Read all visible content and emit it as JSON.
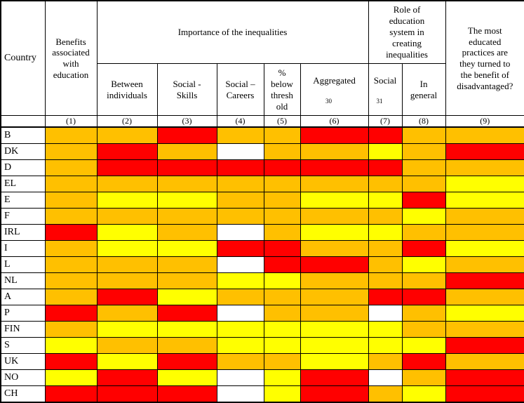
{
  "header": {
    "country": "Country",
    "benefits": "Benefits\nassociated\nwith\neducation",
    "importance_group": "Importance of the inequalities",
    "between_individuals": "Between\nindividuals",
    "social_skills": "Social -\nSkills",
    "social_careers": "Social –\nCareers",
    "pct_below_threshold": "%\nbelow\nthresh\nold",
    "aggregated_label": "Aggregated",
    "aggregated_note": "30",
    "role_group": "Role of\neducation\nsystem in\ncreating\ninequalities",
    "social_label": "Social",
    "social_note": "31",
    "in_general": "In\ngeneral",
    "most_educated": "The most\neducated\npractices are\nthey turned to\nthe benefit of\ndisadvantaged?",
    "column_numbers": [
      "(1)",
      "(2)",
      "(3)",
      "(4)",
      "(5)",
      "(6)",
      "(7)",
      "(8)",
      "(9)"
    ]
  },
  "chart_data": {
    "type": "heatmap",
    "columns": [
      "Benefits associated with education (1)",
      "Between individuals (2)",
      "Social - Skills (3)",
      "Social – Careers (4)",
      "% below threshold (5)",
      "Aggregated 30 (6)",
      "Social 31 (7)",
      "In general (8)",
      "The most educated practices are they turned to the benefit of disadvantaged? (9)"
    ],
    "column_groups": [
      {
        "label": "Importance of the inequalities",
        "spans": [
          "(2)",
          "(3)",
          "(4)",
          "(5)",
          "(6)"
        ]
      },
      {
        "label": "Role of education system in creating inequalities",
        "spans": [
          "(7)",
          "(8)"
        ]
      }
    ],
    "color_scale": {
      "orange": "#FFC000",
      "red": "#FF0000",
      "yellow": "#FFFF00",
      "white": "#FFFFFF"
    },
    "rows": [
      {
        "country": "B",
        "cells": [
          "orange",
          "orange",
          "red",
          "orange",
          "orange",
          "red",
          "red",
          "orange",
          "orange"
        ]
      },
      {
        "country": "DK",
        "cells": [
          "orange",
          "red",
          "orange",
          "white",
          "orange",
          "orange",
          "yellow",
          "orange",
          "red"
        ]
      },
      {
        "country": "D",
        "cells": [
          "orange",
          "red",
          "red",
          "red",
          "red",
          "red",
          "red",
          "orange",
          "orange"
        ]
      },
      {
        "country": "EL",
        "cells": [
          "orange",
          "orange",
          "orange",
          "orange",
          "orange",
          "orange",
          "orange",
          "orange",
          "yellow"
        ]
      },
      {
        "country": "E",
        "cells": [
          "orange",
          "yellow",
          "yellow",
          "orange",
          "orange",
          "yellow",
          "yellow",
          "red",
          "yellow"
        ]
      },
      {
        "country": "F",
        "cells": [
          "orange",
          "orange",
          "orange",
          "orange",
          "orange",
          "orange",
          "orange",
          "yellow",
          "orange"
        ]
      },
      {
        "country": "IRL",
        "cells": [
          "red",
          "yellow",
          "orange",
          "white",
          "orange",
          "yellow",
          "yellow",
          "orange",
          "orange"
        ]
      },
      {
        "country": "I",
        "cells": [
          "orange",
          "yellow",
          "yellow",
          "red",
          "red",
          "orange",
          "orange",
          "red",
          "yellow"
        ]
      },
      {
        "country": "L",
        "cells": [
          "orange",
          "orange",
          "orange",
          "white",
          "red",
          "red",
          "orange",
          "yellow",
          "orange"
        ]
      },
      {
        "country": "NL",
        "cells": [
          "orange",
          "orange",
          "orange",
          "yellow",
          "yellow",
          "orange",
          "orange",
          "orange",
          "red"
        ]
      },
      {
        "country": "A",
        "cells": [
          "orange",
          "red",
          "yellow",
          "orange",
          "orange",
          "orange",
          "red",
          "red",
          "orange"
        ]
      },
      {
        "country": "P",
        "cells": [
          "red",
          "orange",
          "red",
          "white",
          "orange",
          "orange",
          "white",
          "orange",
          "yellow"
        ]
      },
      {
        "country": "FIN",
        "cells": [
          "orange",
          "yellow",
          "yellow",
          "yellow",
          "yellow",
          "yellow",
          "yellow",
          "orange",
          "orange"
        ]
      },
      {
        "country": "S",
        "cells": [
          "yellow",
          "orange",
          "orange",
          "yellow",
          "yellow",
          "yellow",
          "yellow",
          "yellow",
          "red"
        ]
      },
      {
        "country": "UK",
        "cells": [
          "red",
          "yellow",
          "red",
          "orange",
          "orange",
          "yellow",
          "orange",
          "red",
          "orange"
        ]
      },
      {
        "country": "NO",
        "cells": [
          "yellow",
          "red",
          "yellow",
          "white",
          "yellow",
          "red",
          "white",
          "orange",
          "red"
        ]
      },
      {
        "country": "CH",
        "cells": [
          "red",
          "red",
          "red",
          "white",
          "yellow",
          "red",
          "orange",
          "yellow",
          "red"
        ]
      }
    ]
  }
}
